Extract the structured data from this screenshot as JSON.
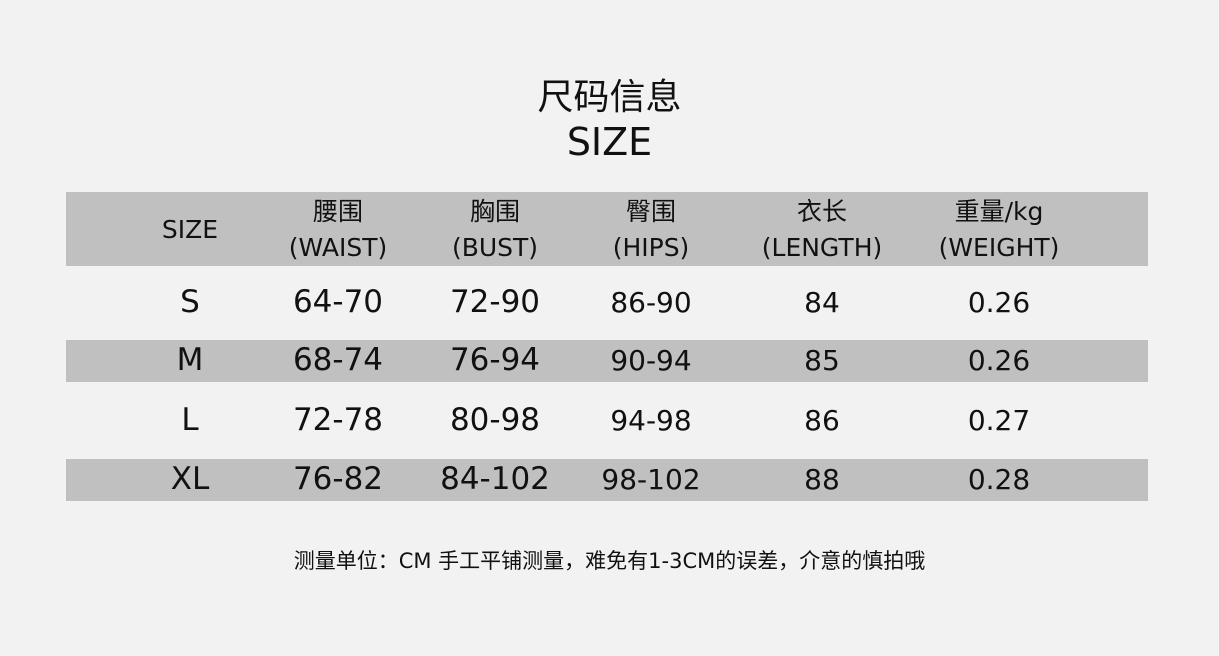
{
  "title_cn": "尺码信息",
  "title_en": "SIZE",
  "columns": [
    {
      "cn": "",
      "en": "SIZE"
    },
    {
      "cn": "腰围",
      "en": "(WAIST)"
    },
    {
      "cn": "胸围",
      "en": "(BUST)"
    },
    {
      "cn": "臀围",
      "en": "(HIPS)"
    },
    {
      "cn": "衣长",
      "en": "(LENGTH)"
    },
    {
      "cn": "重量/kg",
      "en": "(WEIGHT)"
    }
  ],
  "rows": [
    [
      "S",
      "64-70",
      "72-90",
      "86-90",
      "84",
      "0.26"
    ],
    [
      "M",
      "68-74",
      "76-94",
      "90-94",
      "85",
      "0.26"
    ],
    [
      "L",
      "72-78",
      "80-98",
      "94-98",
      "86",
      "0.27"
    ],
    [
      "XL",
      "76-82",
      "84-102",
      "98-102",
      "88",
      "0.28"
    ]
  ],
  "footnote": "测量单位：CM 手工平铺测量，难免有1-3CM的误差，介意的慎拍哦"
}
